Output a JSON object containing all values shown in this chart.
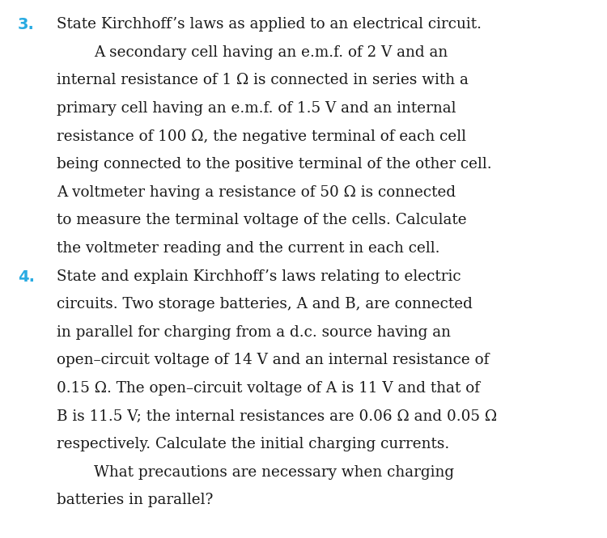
{
  "background_color": "#ffffff",
  "number_color": "#29ABE2",
  "text_color": "#1a1a1a",
  "font_size": 13.2,
  "number_font_size": 14.0,
  "figsize": [
    7.5,
    6.65
  ],
  "dpi": 100,
  "items": [
    {
      "number": "3.",
      "lines": [
        {
          "text": "State Kirchhoff’s laws as applied to an electrical circuit.",
          "indent": false
        },
        {
          "text": "A secondary cell having an e.m.f. of 2 V and an",
          "indent": true
        },
        {
          "text": "internal resistance of 1 Ω is connected in series with a",
          "indent": false
        },
        {
          "text": "primary cell having an e.m.f. of 1.5 V and an internal",
          "indent": false
        },
        {
          "text": "resistance of 100 Ω, the negative terminal of each cell",
          "indent": false
        },
        {
          "text": "being connected to the positive terminal of the other cell.",
          "indent": false
        },
        {
          "text": "A voltmeter having a resistance of 50 Ω is connected",
          "indent": false
        },
        {
          "text": "to measure the terminal voltage of the cells. Calculate",
          "indent": false
        },
        {
          "text": "the voltmeter reading and the current in each cell.",
          "indent": false
        }
      ]
    },
    {
      "number": "4.",
      "lines": [
        {
          "text": "State and explain Kirchhoff’s laws relating to electric",
          "indent": false
        },
        {
          "text": "circuits. Two storage batteries, A and B, are connected",
          "indent": false
        },
        {
          "text": "in parallel for charging from a d.c. source having an",
          "indent": false
        },
        {
          "text": "open–circuit voltage of 14 V and an internal resistance of",
          "indent": false
        },
        {
          "text": "0.15 Ω. The open–circuit voltage of A is 11 V and that of",
          "indent": false
        },
        {
          "text": "B is 11.5 V; the internal resistances are 0.06 Ω and 0.05 Ω",
          "indent": false
        },
        {
          "text": "respectively. Calculate the initial charging currents.",
          "indent": false
        },
        {
          "text": "What precautions are necessary when charging",
          "indent": true
        },
        {
          "text": "batteries in parallel?",
          "indent": false
        }
      ]
    }
  ]
}
